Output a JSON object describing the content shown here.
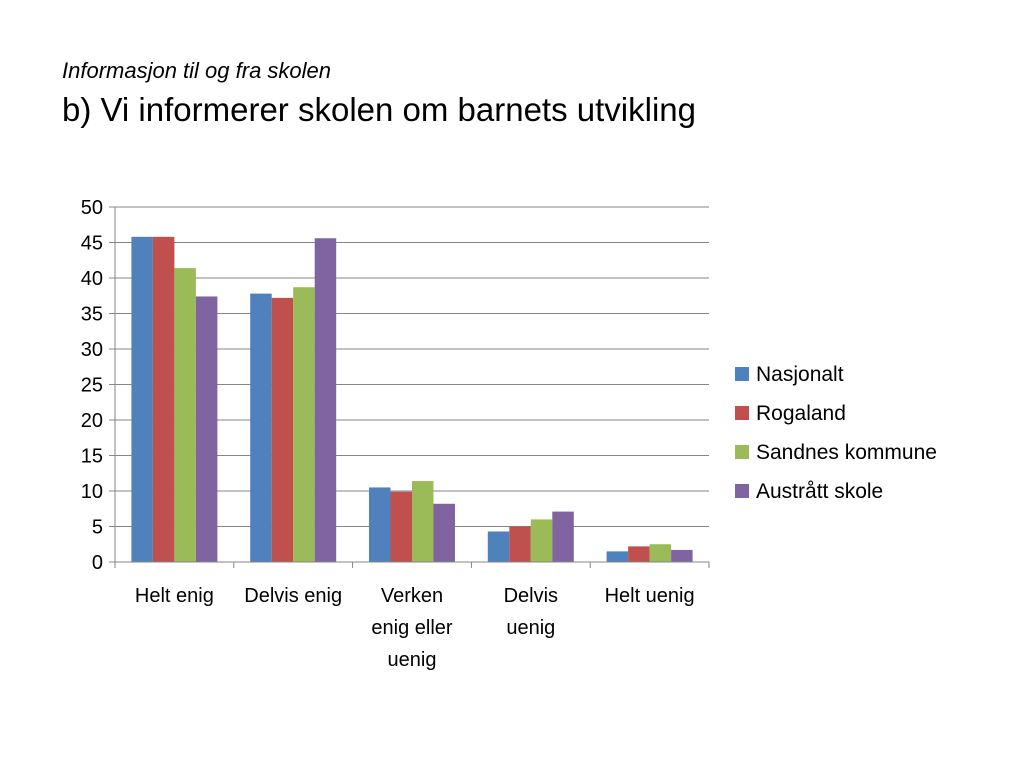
{
  "slide": {
    "subtitle": "Informasjon til og fra skolen",
    "title": "b) Vi informerer skolen om barnets utvikling"
  },
  "chart_data": {
    "type": "bar",
    "categories": [
      [
        "Helt enig"
      ],
      [
        "Delvis enig"
      ],
      [
        "Verken",
        "enig eller",
        "uenig"
      ],
      [
        "Delvis",
        "uenig"
      ],
      [
        "Helt uenig"
      ]
    ],
    "series": [
      {
        "name": "Nasjonalt",
        "color": "#4F81BD",
        "values": [
          45.8,
          37.8,
          10.5,
          4.3,
          1.5
        ]
      },
      {
        "name": "Rogaland",
        "color": "#C0504D",
        "values": [
          45.8,
          37.2,
          9.9,
          5.0,
          2.2
        ]
      },
      {
        "name": "Sandnes kommune",
        "color": "#9BBB59",
        "values": [
          41.4,
          38.7,
          11.4,
          6.0,
          2.5
        ]
      },
      {
        "name": "Austrått skole",
        "color": "#8064A2",
        "values": [
          37.4,
          45.6,
          8.2,
          7.1,
          1.7
        ]
      }
    ],
    "ylim": [
      0,
      50
    ],
    "yticks": [
      0,
      5,
      10,
      15,
      20,
      25,
      30,
      35,
      40,
      45,
      50
    ],
    "grid": true,
    "legend_position": "right"
  }
}
